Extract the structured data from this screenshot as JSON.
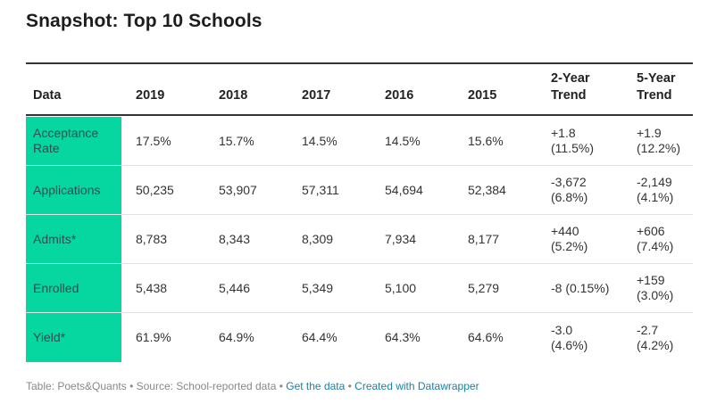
{
  "title": "Snapshot: Top 10 Schools",
  "table": {
    "headers": {
      "data": "Data",
      "y2019": "2019",
      "y2018": "2018",
      "y2017": "2017",
      "y2016": "2016",
      "y2015": "2015",
      "trend2_line1": "2-Year",
      "trend2_line2": "Trend",
      "trend5_line1": "5-Year",
      "trend5_line2": "Trend"
    },
    "rows": [
      {
        "label_line1": "Acceptance",
        "label_line2": "Rate",
        "y2019": "17.5%",
        "y2018": "15.7%",
        "y2017": "14.5%",
        "y2016": "14.5%",
        "y2015": "15.6%",
        "trend2_line1": "+1.8",
        "trend2_line2": "(11.5%)",
        "trend5_line1": "+1.9",
        "trend5_line2": "(12.2%)"
      },
      {
        "label_line1": "Applications",
        "label_line2": "",
        "y2019": "50,235",
        "y2018": "53,907",
        "y2017": "57,311",
        "y2016": "54,694",
        "y2015": "52,384",
        "trend2_line1": "-3,672",
        "trend2_line2": "(6.8%)",
        "trend5_line1": "-2,149",
        "trend5_line2": "(4.1%)"
      },
      {
        "label_line1": "Admits*",
        "label_line2": "",
        "y2019": "8,783",
        "y2018": "8,343",
        "y2017": "8,309",
        "y2016": "7,934",
        "y2015": "8,177",
        "trend2_line1": "+440",
        "trend2_line2": "(5.2%)",
        "trend5_line1": "+606",
        "trend5_line2": "(7.4%)"
      },
      {
        "label_line1": "Enrolled",
        "label_line2": "",
        "y2019": "5,438",
        "y2018": "5,446",
        "y2017": "5,349",
        "y2016": "5,100",
        "y2015": "5,279",
        "trend2_line1": "-8 (0.15%)",
        "trend2_line2": "",
        "trend5_line1": "+159",
        "trend5_line2": "(3.0%)"
      },
      {
        "label_line1": "Yield*",
        "label_line2": "",
        "y2019": "61.9%",
        "y2018": "64.9%",
        "y2017": "64.4%",
        "y2016": "64.3%",
        "y2015": "64.6%",
        "trend2_line1": "-3.0",
        "trend2_line2": "(4.6%)",
        "trend5_line1": "-2.7",
        "trend5_line2": "(4.2%)"
      }
    ]
  },
  "footer": {
    "source_text": "Table: Poets&Quants • Source: School-reported data",
    "separator": " • ",
    "get_data_link": "Get the data",
    "created_with_link": "Created with Datawrapper"
  },
  "colors": {
    "label_column": "#06d6a0",
    "link": "#1d81a2"
  }
}
